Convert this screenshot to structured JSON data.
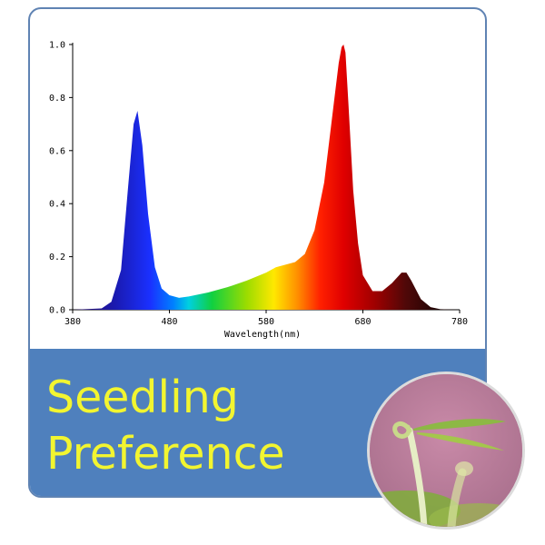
{
  "banner": {
    "title_line1": "Seedling",
    "title_line2": "Preference"
  },
  "photo": {
    "subject": "seedling-photo"
  },
  "colors": {
    "banner": "#4f80bd",
    "title": "#f2f530",
    "border": "#5f83b3"
  },
  "chart_data": {
    "type": "area",
    "title": "",
    "xlabel": "Wavelength(nm)",
    "ylabel": "",
    "xlim": [
      380,
      780
    ],
    "ylim": [
      0,
      1.0
    ],
    "xticks": [
      380,
      480,
      580,
      680,
      780
    ],
    "yticks": [
      0.0,
      0.2,
      0.4,
      0.6,
      0.8,
      1.0
    ],
    "ytick_labels": [
      "0.0",
      "0.2",
      "0.4",
      "0.6",
      "0.8",
      "1.0"
    ],
    "grid": false,
    "series": [
      {
        "x": [
          380,
          410,
          420,
          430,
          437,
          443,
          447,
          452,
          458,
          465,
          472,
          480,
          490,
          500,
          520,
          540,
          560,
          580,
          590,
          600,
          610,
          620,
          630,
          640,
          650,
          655,
          658,
          660,
          662,
          665,
          670,
          675,
          680,
          690,
          700,
          710,
          720,
          725,
          730,
          740,
          750,
          760,
          780
        ],
        "y": [
          0,
          0.005,
          0.03,
          0.15,
          0.45,
          0.7,
          0.75,
          0.62,
          0.36,
          0.16,
          0.08,
          0.055,
          0.045,
          0.05,
          0.065,
          0.085,
          0.11,
          0.14,
          0.16,
          0.17,
          0.18,
          0.21,
          0.3,
          0.48,
          0.78,
          0.93,
          0.99,
          1.0,
          0.97,
          0.78,
          0.45,
          0.25,
          0.13,
          0.07,
          0.07,
          0.1,
          0.14,
          0.14,
          0.11,
          0.04,
          0.01,
          0.002,
          0
        ]
      }
    ]
  }
}
